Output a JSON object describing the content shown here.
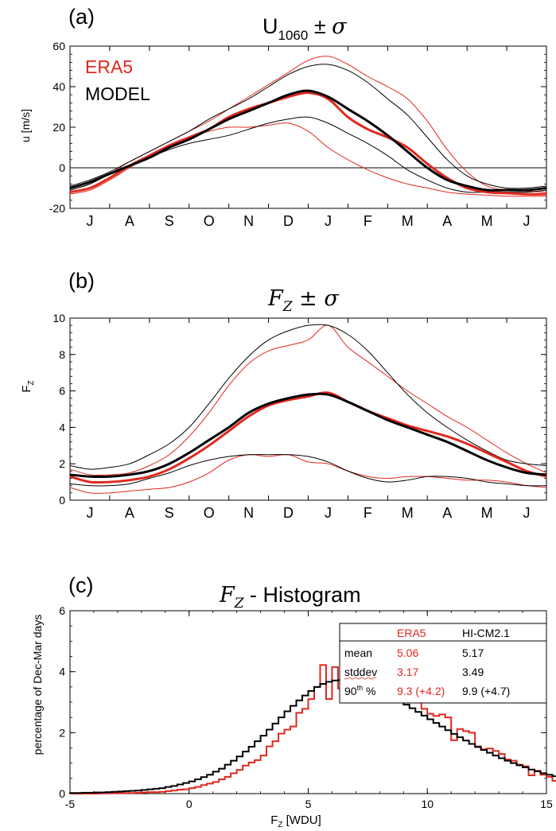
{
  "colors": {
    "era5": "#e0281e",
    "model": "#000000",
    "axis": "#000000"
  },
  "chart_data": [
    {
      "panel": "(a)",
      "type": "line",
      "title": "U1060 ± σ",
      "title_main": "U",
      "title_sub": "1060",
      "title_tail": " ± ",
      "title_sigma": "σ",
      "ylabel": "u [m/s]",
      "xlabel": "",
      "x_ticks": [
        "J",
        "A",
        "S",
        "O",
        "N",
        "D",
        "J",
        "F",
        "M",
        "A",
        "M",
        "J"
      ],
      "y_ticks": [
        "-20",
        "0",
        "20",
        "40",
        "60"
      ],
      "ylim": [
        -20,
        60
      ],
      "xlim": [
        0,
        12
      ],
      "grid": false,
      "zero_line": 0,
      "legend_position": "top-left",
      "legend": [
        {
          "label": "ERA5",
          "color": "#e0281e"
        },
        {
          "label": "MODEL",
          "color": "#000000"
        }
      ],
      "x": [
        0,
        0.5,
        1,
        1.5,
        2,
        2.5,
        3,
        3.5,
        4,
        4.5,
        5,
        5.5,
        6,
        6.5,
        7,
        7.5,
        8,
        8.5,
        9,
        9.5,
        10,
        10.5,
        11,
        11.5,
        12
      ],
      "series": [
        {
          "name": "ERA5",
          "role": "mean",
          "color": "#e0281e",
          "width": 3,
          "values": [
            -12,
            -10,
            -5,
            1,
            6,
            11,
            15,
            19,
            25,
            29,
            32,
            35,
            37,
            34,
            25,
            19,
            15,
            10,
            2,
            -5,
            -10,
            -12,
            -12.5,
            -13,
            -13
          ]
        },
        {
          "name": "ERA5",
          "role": "plus-sigma",
          "color": "#e0281e",
          "width": 1,
          "values": [
            -11,
            -8,
            -3,
            3,
            8,
            13,
            18,
            23,
            29,
            35,
            41,
            47,
            53,
            55,
            51,
            45,
            40,
            34,
            23,
            9,
            -2,
            -9,
            -11,
            -11.5,
            -12
          ]
        },
        {
          "name": "ERA5",
          "role": "minus-sigma",
          "color": "#e0281e",
          "width": 1,
          "values": [
            -13,
            -11,
            -6,
            0,
            6,
            11,
            15,
            18,
            20,
            20,
            21,
            22,
            18,
            10,
            4,
            -1,
            -5,
            -8,
            -10,
            -12,
            -13,
            -13.5,
            -14,
            -14,
            -14
          ]
        },
        {
          "name": "MODEL",
          "role": "mean",
          "color": "#000000",
          "width": 3,
          "values": [
            -10,
            -7,
            -3,
            1,
            5,
            10,
            14,
            19,
            24,
            28,
            32,
            36,
            38,
            35,
            29,
            23,
            16,
            8,
            0,
            -6,
            -9,
            -11,
            -11,
            -11,
            -10
          ]
        },
        {
          "name": "MODEL",
          "role": "plus-sigma",
          "color": "#000000",
          "width": 1,
          "values": [
            -9,
            -6,
            -2,
            3,
            8,
            13,
            18,
            24,
            29,
            34,
            40,
            46,
            50,
            51,
            48,
            42,
            34,
            26,
            15,
            4,
            -4,
            -8,
            -10,
            -10,
            -9
          ]
        },
        {
          "name": "MODEL",
          "role": "minus-sigma",
          "color": "#000000",
          "width": 1,
          "values": [
            -11,
            -8,
            -3,
            1,
            5,
            9,
            12,
            14,
            16,
            19,
            22,
            24,
            25,
            22,
            17,
            12,
            6,
            -1,
            -6,
            -10,
            -12,
            -12,
            -12,
            -12,
            -11
          ]
        }
      ]
    },
    {
      "panel": "(b)",
      "type": "line",
      "title": "FZ ± σ",
      "title_main": "F",
      "title_sub": "Z",
      "title_tail": " ± ",
      "title_sigma": "σ",
      "ylabel": "FZ",
      "ylabel_main": "F",
      "ylabel_sub": "Z",
      "xlabel": "",
      "x_ticks": [
        "J",
        "A",
        "S",
        "O",
        "N",
        "D",
        "J",
        "F",
        "M",
        "A",
        "M",
        "J"
      ],
      "y_ticks": [
        "0",
        "2",
        "4",
        "6",
        "8",
        "10"
      ],
      "ylim": [
        0,
        10
      ],
      "xlim": [
        0,
        12
      ],
      "grid": false,
      "x": [
        0,
        0.5,
        1,
        1.5,
        2,
        2.5,
        3,
        3.5,
        4,
        4.5,
        5,
        5.5,
        6,
        6.5,
        7,
        7.5,
        8,
        8.5,
        9,
        9.5,
        10,
        10.5,
        11,
        11.5,
        12
      ],
      "series": [
        {
          "name": "ERA5",
          "role": "mean",
          "color": "#e0281e",
          "width": 3,
          "values": [
            1.3,
            1.0,
            1.0,
            1.1,
            1.3,
            1.7,
            2.3,
            3.0,
            3.8,
            4.6,
            5.2,
            5.5,
            5.7,
            5.9,
            5.4,
            4.9,
            4.5,
            4.1,
            3.8,
            3.5,
            3.1,
            2.6,
            2.1,
            1.6,
            1.3
          ]
        },
        {
          "name": "ERA5",
          "role": "plus-sigma",
          "color": "#e0281e",
          "width": 1,
          "values": [
            1.7,
            1.4,
            1.4,
            1.5,
            1.9,
            2.5,
            3.5,
            4.8,
            6.3,
            7.5,
            8.2,
            8.5,
            8.8,
            9.6,
            8.4,
            7.6,
            6.8,
            6.0,
            5.3,
            4.6,
            4.0,
            3.3,
            2.6,
            2.0,
            1.5
          ]
        },
        {
          "name": "ERA5",
          "role": "minus-sigma",
          "color": "#e0281e",
          "width": 1,
          "values": [
            0.7,
            0.4,
            0.4,
            0.5,
            0.6,
            0.7,
            1.0,
            1.5,
            2.2,
            2.5,
            2.4,
            2.5,
            2.1,
            2.0,
            1.6,
            1.3,
            1.2,
            1.3,
            1.3,
            1.2,
            1.1,
            1.1,
            1.0,
            0.8,
            0.7
          ]
        },
        {
          "name": "MODEL",
          "role": "mean",
          "color": "#000000",
          "width": 3,
          "values": [
            1.4,
            1.3,
            1.3,
            1.4,
            1.6,
            2.0,
            2.6,
            3.3,
            4.0,
            4.8,
            5.3,
            5.6,
            5.8,
            5.8,
            5.4,
            4.9,
            4.4,
            4.0,
            3.6,
            3.2,
            2.7,
            2.2,
            1.8,
            1.5,
            1.4
          ]
        },
        {
          "name": "MODEL",
          "role": "plus-sigma",
          "color": "#000000",
          "width": 1,
          "values": [
            1.9,
            1.7,
            1.8,
            2.0,
            2.5,
            3.1,
            4.0,
            5.3,
            6.7,
            7.9,
            8.8,
            9.3,
            9.6,
            9.6,
            9.1,
            8.2,
            7.0,
            5.8,
            4.8,
            4.0,
            3.3,
            2.7,
            2.2,
            2.0,
            1.9
          ]
        },
        {
          "name": "MODEL",
          "role": "minus-sigma",
          "color": "#000000",
          "width": 1,
          "values": [
            0.9,
            0.8,
            0.8,
            0.9,
            1.2,
            1.5,
            1.9,
            2.2,
            2.4,
            2.5,
            2.5,
            2.5,
            2.4,
            2.1,
            1.6,
            1.2,
            1.0,
            1.1,
            1.3,
            1.3,
            1.2,
            1.0,
            0.9,
            0.8,
            0.8
          ]
        }
      ]
    },
    {
      "panel": "(c)",
      "type": "histogram",
      "title": "FZ - Histogram",
      "title_main": "F",
      "title_sub": "Z",
      "title_tail": " - Histogram",
      "ylabel": "percentage of Dec-Mar days",
      "xlabel": "FZ [WDU]",
      "xlabel_main": "F",
      "xlabel_sub": "Z",
      "xlabel_tail": " [WDU]",
      "x_ticks": [
        "-5",
        "0",
        "5",
        "10",
        "15"
      ],
      "y_ticks": [
        "0",
        "2",
        "4",
        "6"
      ],
      "xlim": [
        -5,
        15
      ],
      "ylim": [
        0,
        6
      ],
      "grid": false,
      "bin_width": 0.25,
      "bin_start": -5,
      "series": [
        {
          "name": "ERA5",
          "color": "#e0281e",
          "values": [
            0,
            0,
            0,
            0,
            0,
            0.01,
            0.01,
            0.01,
            0.02,
            0.02,
            0.02,
            0.03,
            0.04,
            0.05,
            0.05,
            0.06,
            0.08,
            0.1,
            0.13,
            0.14,
            0.18,
            0.22,
            0.28,
            0.33,
            0.38,
            0.47,
            0.55,
            0.67,
            0.78,
            0.92,
            1.02,
            1.1,
            1.25,
            1.55,
            1.72,
            1.97,
            2.1,
            2.2,
            2.65,
            2.78,
            3.1,
            3.5,
            4.22,
            3.1,
            4.15,
            3.45,
            3.42,
            3.8,
            4.0,
            4.1,
            3.9,
            3.95,
            4.08,
            3.7,
            3.32,
            3.42,
            3.55,
            3.4,
            3.1,
            2.78,
            2.62,
            2.55,
            2.6,
            2.5,
            1.75,
            2.12,
            2.05,
            2.0,
            1.55,
            1.45,
            1.48,
            1.4,
            1.3,
            1.12,
            1.08,
            0.95,
            0.9,
            0.6,
            0.75,
            0.62,
            0.55,
            0.42,
            0.5,
            0.38,
            0.3,
            0.45,
            0.3,
            0.28,
            0.32,
            0.15,
            0.28,
            0.1,
            0.18,
            0.15,
            0.08,
            0.12,
            0.1,
            0.1,
            0.08,
            0.1
          ]
        },
        {
          "name": "HI-CM2.1",
          "color": "#000000",
          "values": [
            0.02,
            0.02,
            0.03,
            0.03,
            0.04,
            0.04,
            0.05,
            0.06,
            0.07,
            0.08,
            0.09,
            0.1,
            0.12,
            0.14,
            0.16,
            0.18,
            0.22,
            0.25,
            0.3,
            0.35,
            0.4,
            0.47,
            0.54,
            0.62,
            0.72,
            0.82,
            0.95,
            1.08,
            1.22,
            1.38,
            1.54,
            1.72,
            1.9,
            2.1,
            2.3,
            2.5,
            2.7,
            2.88,
            3.06,
            3.22,
            3.37,
            3.5,
            3.6,
            3.67,
            3.71,
            3.72,
            3.72,
            3.7,
            3.66,
            3.6,
            3.53,
            3.45,
            3.36,
            3.26,
            3.15,
            3.04,
            2.92,
            2.8,
            2.68,
            2.56,
            2.44,
            2.32,
            2.2,
            2.08,
            1.96,
            1.85,
            1.74,
            1.63,
            1.53,
            1.43,
            1.34,
            1.25,
            1.16,
            1.08,
            1.0,
            0.93,
            0.86,
            0.79,
            0.73,
            0.67,
            0.62,
            0.57,
            0.52,
            0.48,
            0.44,
            0.4,
            0.37,
            0.34,
            0.31,
            0.28,
            0.26,
            0.24,
            0.22,
            0.2,
            0.18,
            0.17,
            0.15,
            0.14,
            0.13,
            0.12
          ]
        }
      ],
      "stats_table": {
        "headers": [
          "",
          "ERA5",
          "HI-CM2.1"
        ],
        "rows": [
          {
            "label": "mean",
            "era5": "5.06",
            "model": "5.17"
          },
          {
            "label": "stddev",
            "era5": "3.17",
            "model": "3.49"
          },
          {
            "label": "90th %",
            "label_main": "90",
            "label_sup": "th",
            "label_tail": " %",
            "era5": "9.3 (+4.2)",
            "model": "9.9 (+4.7)"
          }
        ]
      }
    }
  ]
}
